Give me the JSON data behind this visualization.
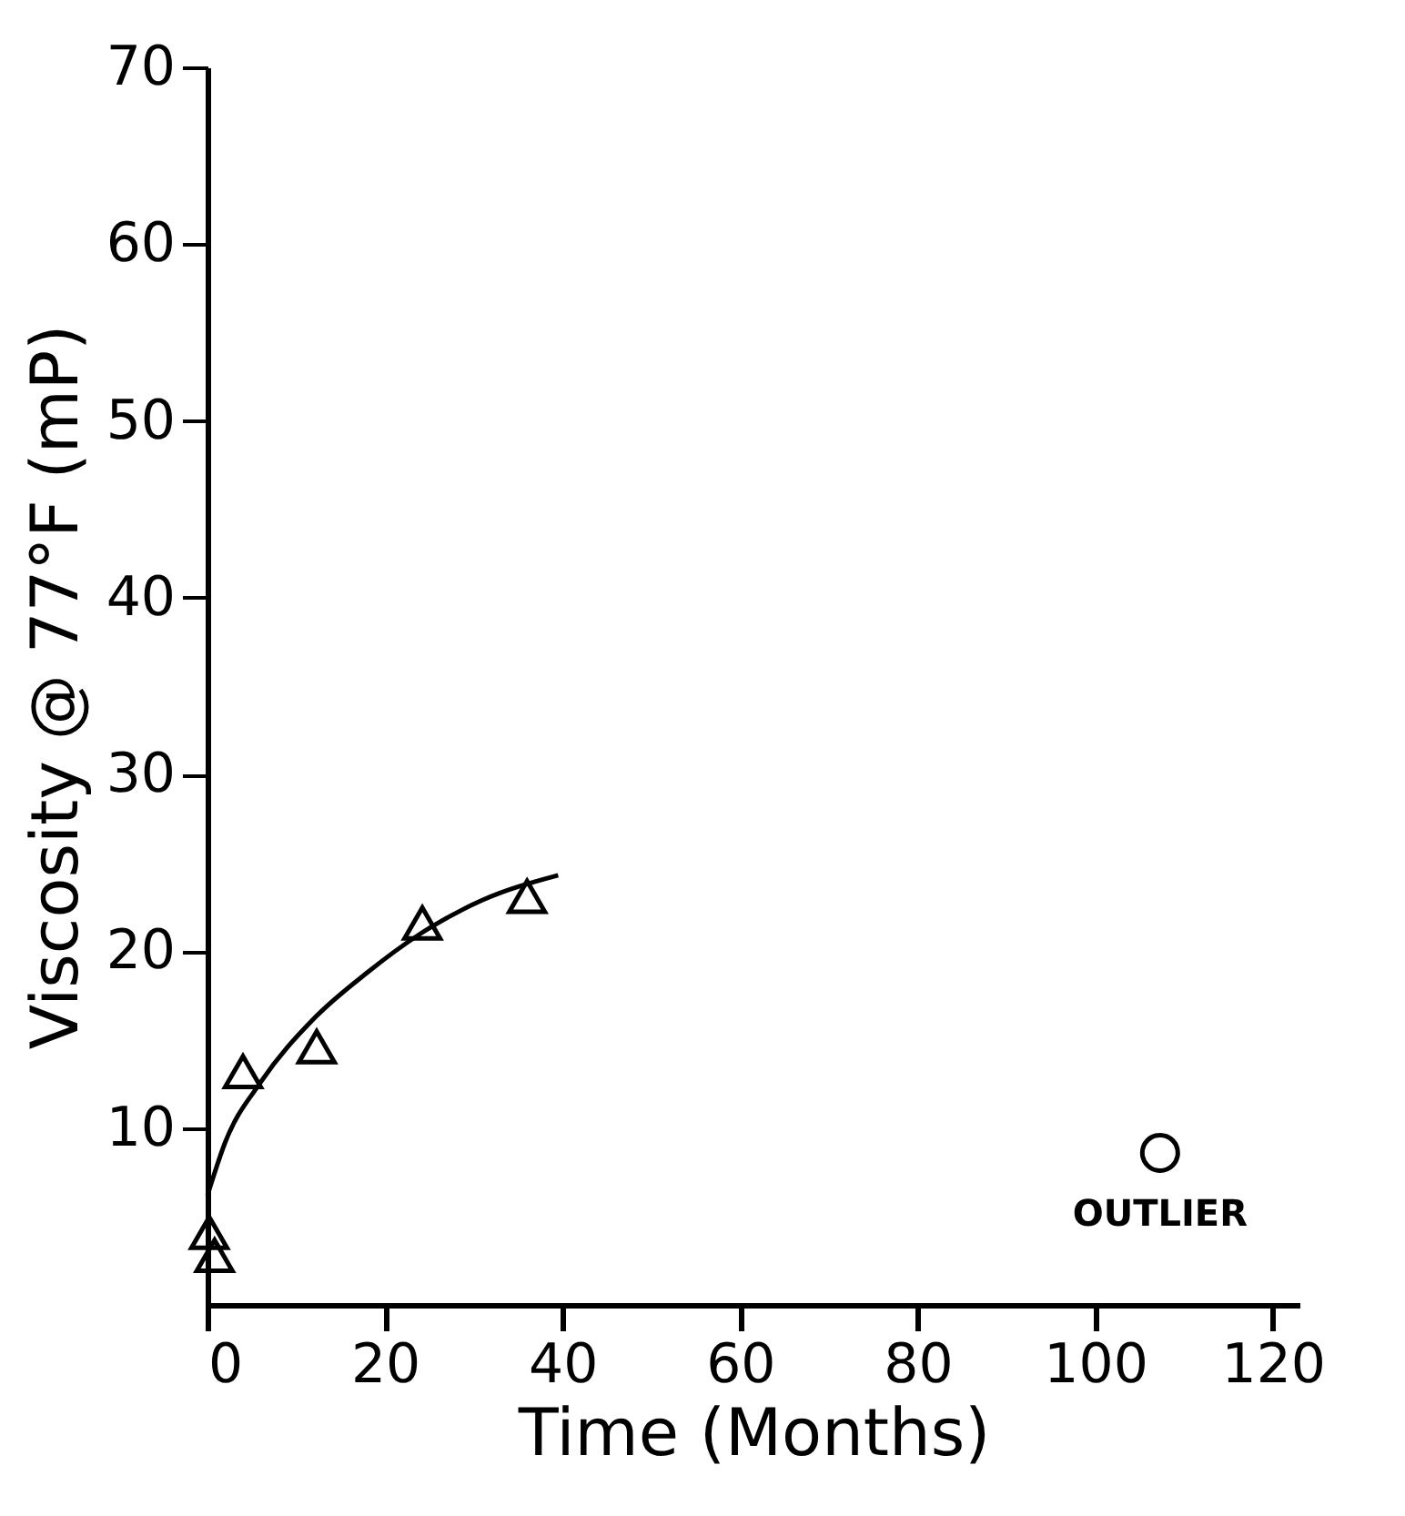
{
  "chart_data": {
    "type": "scatter",
    "xlabel": "Time (Months)",
    "ylabel": "Viscosity @ 77°F (mP)",
    "xlim": [
      0,
      123
    ],
    "xticks": [
      0,
      20,
      40,
      60,
      80,
      100,
      120
    ],
    "ylim": [
      0,
      70
    ],
    "yticks": [
      10,
      20,
      30,
      40,
      50,
      60,
      70
    ],
    "grid": false,
    "series": [
      {
        "marker": "triangle",
        "color": "#000000",
        "x": [
          0.2,
          0.8,
          4,
          12.3,
          24.2,
          36
        ],
        "values": [
          4.1,
          2.8,
          13.2,
          14.6,
          21.6,
          23.1
        ]
      },
      {
        "type": "line",
        "marker": "none",
        "line_style": "solid",
        "color": "#000000",
        "x": [
          0,
          2,
          6,
          12,
          18,
          24,
          31,
          39.5
        ],
        "values": [
          6.2,
          9.2,
          12.6,
          16.2,
          18.8,
          21,
          22.9,
          24.3
        ]
      },
      {
        "marker": "circle",
        "color": "#000000",
        "x": [
          107.3
        ],
        "values": [
          8.6
        ]
      }
    ],
    "annotations": [
      {
        "text": "OUTLIER",
        "x": 107.3,
        "y": 8.6
      }
    ]
  }
}
